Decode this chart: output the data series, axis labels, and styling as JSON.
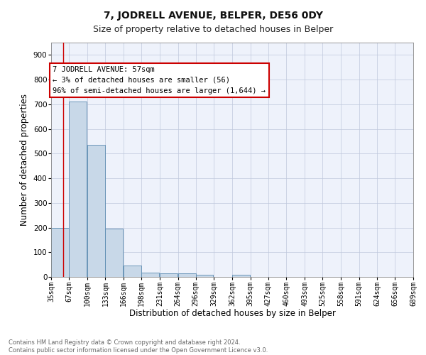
{
  "title": "7, JODRELL AVENUE, BELPER, DE56 0DY",
  "subtitle": "Size of property relative to detached houses in Belper",
  "xlabel": "Distribution of detached houses by size in Belper",
  "ylabel": "Number of detached properties",
  "bar_color": "#c8d8e8",
  "bar_edge_color": "#5a8ab0",
  "background_color": "#eef2fb",
  "grid_color": "#c0c8dc",
  "bins": [
    35,
    67,
    100,
    133,
    166,
    198,
    231,
    264,
    296,
    329,
    362,
    395,
    427,
    460,
    493,
    525,
    558,
    591,
    624,
    656,
    689
  ],
  "heights": [
    200,
    710,
    535,
    195,
    45,
    18,
    15,
    13,
    8,
    0,
    10,
    0,
    0,
    0,
    0,
    0,
    0,
    0,
    0,
    0
  ],
  "tick_labels": [
    "35sqm",
    "67sqm",
    "100sqm",
    "133sqm",
    "166sqm",
    "198sqm",
    "231sqm",
    "264sqm",
    "296sqm",
    "329sqm",
    "362sqm",
    "395sqm",
    "427sqm",
    "460sqm",
    "493sqm",
    "525sqm",
    "558sqm",
    "591sqm",
    "624sqm",
    "656sqm",
    "689sqm"
  ],
  "property_size": 57,
  "property_line_color": "#cc0000",
  "annotation_line1": "7 JODRELL AVENUE: 57sqm",
  "annotation_line2": "← 3% of detached houses are smaller (56)",
  "annotation_line3": "96% of semi-detached houses are larger (1,644) →",
  "annotation_box_color": "#cc0000",
  "ylim": [
    0,
    950
  ],
  "yticks": [
    0,
    100,
    200,
    300,
    400,
    500,
    600,
    700,
    800,
    900
  ],
  "footer_text": "Contains HM Land Registry data © Crown copyright and database right 2024.\nContains public sector information licensed under the Open Government Licence v3.0.",
  "title_fontsize": 10,
  "subtitle_fontsize": 9,
  "tick_fontsize": 7,
  "ylabel_fontsize": 8.5,
  "xlabel_fontsize": 8.5,
  "annotation_fontsize": 7.5
}
